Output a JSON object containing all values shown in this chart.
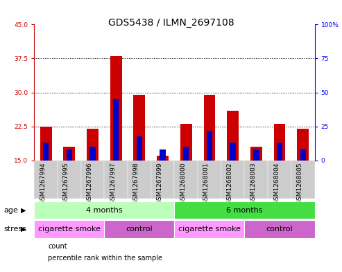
{
  "title": "GDS5438 / ILMN_2697108",
  "samples": [
    "GSM1267994",
    "GSM1267995",
    "GSM1267996",
    "GSM1267997",
    "GSM1267998",
    "GSM1267999",
    "GSM1268000",
    "GSM1268001",
    "GSM1268002",
    "GSM1268003",
    "GSM1268004",
    "GSM1268005"
  ],
  "counts": [
    22.5,
    18.0,
    22.0,
    38.0,
    29.5,
    16.0,
    23.0,
    29.5,
    26.0,
    18.0,
    23.0,
    22.0
  ],
  "percentile_ranks_pct": [
    13,
    8,
    10,
    45,
    18,
    8,
    10,
    22,
    13,
    8,
    13,
    8
  ],
  "base_count": 15,
  "ylim_left": [
    15,
    45
  ],
  "ylim_right": [
    0,
    100
  ],
  "yticks_left": [
    15,
    22.5,
    30,
    37.5,
    45
  ],
  "yticks_right": [
    0,
    25,
    50,
    75,
    100
  ],
  "bar_color_red": "#cc0000",
  "bar_color_blue": "#0000cc",
  "bar_width": 0.5,
  "blue_bar_width": 0.25,
  "age_groups": [
    {
      "label": "4 months",
      "start": 0,
      "end": 6,
      "color": "#bbffbb"
    },
    {
      "label": "6 months",
      "start": 6,
      "end": 12,
      "color": "#44dd44"
    }
  ],
  "stress_groups": [
    {
      "label": "cigarette smoke",
      "start": 0,
      "end": 3,
      "color": "#ff99ff"
    },
    {
      "label": "control",
      "start": 3,
      "end": 6,
      "color": "#cc66cc"
    },
    {
      "label": "cigarette smoke",
      "start": 6,
      "end": 9,
      "color": "#ff99ff"
    },
    {
      "label": "control",
      "start": 9,
      "end": 12,
      "color": "#cc66cc"
    }
  ],
  "legend_items": [
    {
      "label": "count",
      "color": "#cc0000"
    },
    {
      "label": "percentile rank within the sample",
      "color": "#0000cc"
    }
  ],
  "ax_bg": "#ffffff",
  "sample_bg": "#cccccc",
  "title_fontsize": 10,
  "tick_fontsize": 6.5,
  "label_fontsize": 8
}
